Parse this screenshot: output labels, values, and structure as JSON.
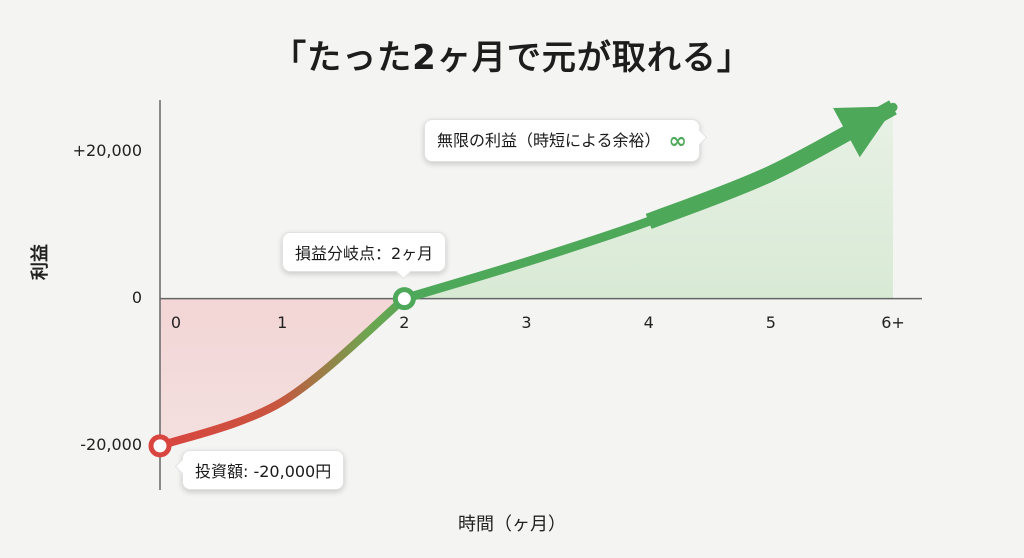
{
  "title": "「たった2ヶ月で元が取れる」",
  "chart_data": {
    "type": "area",
    "xlabel": "時間（ヶ月）",
    "ylabel": "利益",
    "x_categories": [
      "0",
      "1",
      "2",
      "3",
      "4",
      "5",
      "6+"
    ],
    "y_ticks": [
      "+20,000",
      "0",
      "-20,000"
    ],
    "y_tick_values": [
      20000,
      0,
      -20000
    ],
    "ylim": [
      -26000,
      27000
    ],
    "xlim": [
      0,
      6
    ],
    "series": [
      {
        "x": [
          0,
          1,
          2,
          3,
          4,
          5,
          6
        ],
        "y": [
          -20000,
          -14000,
          0,
          5000,
          10500,
          17000,
          26000
        ]
      }
    ],
    "colors": {
      "loss": "#d94a46",
      "profit": "#4ea85a",
      "loss_fill": "#f2cfcf",
      "profit_fill": "#dcebd9"
    },
    "annotations": {
      "investment": "投資額: -20,000円",
      "breakeven": "損益分岐点：2ヶ月",
      "infinite": "無限の利益（時短による余裕）",
      "infinite_symbol": "∞"
    }
  }
}
